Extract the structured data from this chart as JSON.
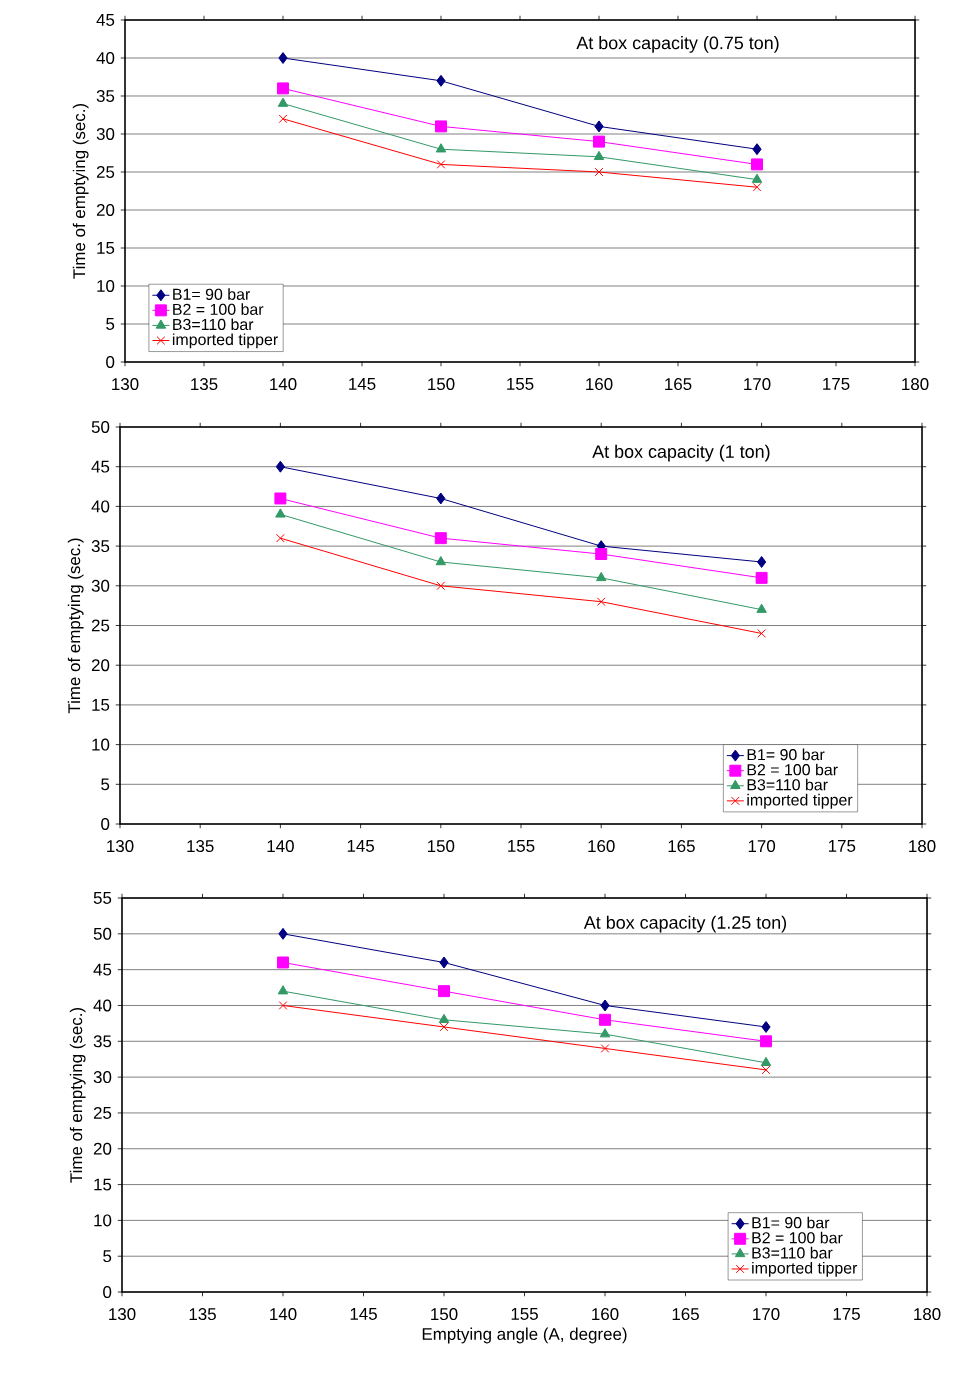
{
  "chart_data": [
    {
      "type": "line",
      "annotations": [
        "At box capacity  (0.75 ton)"
      ],
      "ylabel": "Time of emptying (sec.)",
      "x": [
        140,
        150,
        160,
        170
      ],
      "xlim": [
        130,
        180
      ],
      "xticks": [
        130,
        135,
        140,
        145,
        150,
        155,
        160,
        165,
        170,
        175,
        180
      ],
      "ylim": [
        0,
        45
      ],
      "yticks": [
        0,
        5,
        10,
        15,
        20,
        25,
        30,
        35,
        40,
        45
      ],
      "grid": "y",
      "legend": "bottom left",
      "series": [
        {
          "name": "B1= 90 bar",
          "color": "#000080",
          "marker": "diamond",
          "values": [
            40,
            37,
            31,
            28
          ]
        },
        {
          "name": "B2 = 100 bar",
          "color": "#ff00ff",
          "marker": "square",
          "values": [
            36,
            31,
            29,
            26
          ]
        },
        {
          "name": "B3=110 bar",
          "color": "#339966",
          "marker": "triangle",
          "values": [
            34,
            28,
            27,
            24
          ]
        },
        {
          "name": "imported tipper",
          "color": "#ff0000",
          "marker": "cross",
          "values": [
            32,
            26,
            25,
            23
          ]
        }
      ]
    },
    {
      "type": "line",
      "annotations": [
        "At box capacity (1 ton)"
      ],
      "ylabel": "Time of emptying (sec.)",
      "x": [
        140,
        150,
        160,
        170
      ],
      "xlim": [
        130,
        180
      ],
      "xticks": [
        130,
        135,
        140,
        145,
        150,
        155,
        160,
        165,
        170,
        175,
        180
      ],
      "ylim": [
        0,
        50
      ],
      "yticks": [
        0,
        5,
        10,
        15,
        20,
        25,
        30,
        35,
        40,
        45,
        50
      ],
      "grid": "y",
      "legend": "bottom right",
      "series": [
        {
          "name": "B1= 90 bar",
          "color": "#000080",
          "marker": "diamond",
          "values": [
            45,
            41,
            35,
            33
          ]
        },
        {
          "name": "B2 = 100 bar",
          "color": "#ff00ff",
          "marker": "square",
          "values": [
            41,
            36,
            34,
            31
          ]
        },
        {
          "name": "B3=110 bar",
          "color": "#339966",
          "marker": "triangle",
          "values": [
            39,
            33,
            31,
            27
          ]
        },
        {
          "name": "imported tipper",
          "color": "#ff0000",
          "marker": "cross",
          "values": [
            36,
            30,
            28,
            24
          ]
        }
      ]
    },
    {
      "type": "line",
      "annotations": [
        "At box capacity   (1.25 ton)"
      ],
      "xlabel": "Emptying angle (A, degree)",
      "ylabel": "Time of emptying (sec.)",
      "x": [
        140,
        150,
        160,
        170
      ],
      "xlim": [
        130,
        180
      ],
      "xticks": [
        130,
        135,
        140,
        145,
        150,
        155,
        160,
        165,
        170,
        175,
        180
      ],
      "ylim": [
        0,
        55
      ],
      "yticks": [
        0,
        5,
        10,
        15,
        20,
        25,
        30,
        35,
        40,
        45,
        50,
        55
      ],
      "grid": "y",
      "legend": "bottom right",
      "series": [
        {
          "name": "B1= 90 bar",
          "color": "#000080",
          "marker": "diamond",
          "values": [
            50,
            46,
            40,
            37
          ]
        },
        {
          "name": "B2 = 100 bar",
          "color": "#ff00ff",
          "marker": "square",
          "values": [
            46,
            42,
            38,
            35
          ]
        },
        {
          "name": "B3=110 bar",
          "color": "#339966",
          "marker": "triangle",
          "values": [
            42,
            38,
            36,
            32
          ]
        },
        {
          "name": "imported tipper",
          "color": "#ff0000",
          "marker": "cross",
          "values": [
            40,
            37,
            34,
            31
          ]
        }
      ]
    }
  ]
}
